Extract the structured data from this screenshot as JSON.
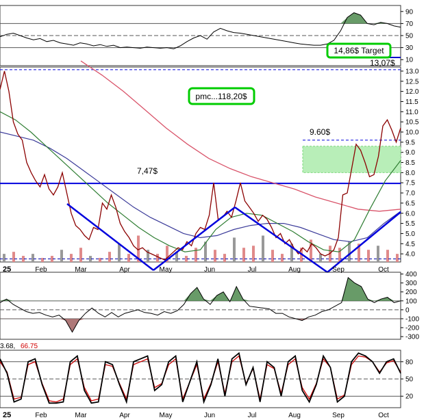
{
  "colors": {
    "price": "#8b0000",
    "ma_green": "#2e7d32",
    "ma_blue": "#3a3a99",
    "ma_red": "#d9546a",
    "trend": "#0000dd",
    "highlight": "#00cc00",
    "zone": "#b8eeb8"
  },
  "chart_data": [
    {
      "type": "line",
      "panel": "rsi",
      "y_ticks": [
        "90",
        "70",
        "50",
        "30",
        "10"
      ],
      "ylim": [
        0,
        100
      ],
      "reference_lines": [
        70,
        50,
        30
      ],
      "series": [
        {
          "values": [
            48,
            52,
            54,
            50,
            46,
            43,
            45,
            40,
            42,
            38,
            36,
            34,
            38,
            36,
            33,
            35,
            32,
            34,
            30,
            31,
            30,
            29,
            31,
            30,
            29,
            30,
            28,
            33,
            40,
            46,
            50,
            44,
            56,
            62,
            58,
            55,
            54,
            52,
            50,
            48,
            46,
            44,
            42,
            40,
            38,
            36,
            35,
            34,
            34,
            36,
            42,
            58,
            80,
            88,
            84,
            70,
            68,
            72,
            70,
            66,
            64
          ]
        }
      ]
    },
    {
      "type": "line",
      "panel": "price",
      "x_tick_labels": [
        "25",
        "Feb",
        "Mar",
        "Apr",
        "May",
        "Jun",
        "Jul",
        "Aug",
        "Sep",
        "Oct"
      ],
      "y_ticks": [
        "13.0",
        "12.5",
        "12.0",
        "11.5",
        "11.0",
        "10.5",
        "10.0",
        "9.5",
        "9.0",
        "8.5",
        "8.0",
        "7.5",
        "7.0",
        "6.5",
        "6.0",
        "5.5",
        "5.0",
        "4.5",
        "4.0"
      ],
      "ylim": [
        3.6,
        13.2
      ],
      "series": [
        {
          "key": "price",
          "values": [
            12.1,
            13.0,
            12.0,
            10.5,
            9.9,
            9.6,
            8.5,
            8.0,
            7.6,
            7.3,
            7.9,
            7.2,
            6.9,
            7.3,
            8.0,
            7.0,
            6.0,
            5.4,
            5.2,
            4.9,
            4.7,
            5.3,
            5.2,
            6.5,
            6.2,
            6.9,
            6.3,
            5.5,
            5.1,
            4.8,
            4.4,
            4.2,
            4.3,
            4.1,
            4.0,
            3.9,
            3.8,
            3.7,
            3.9,
            4.1,
            4.3,
            4.2,
            4.6,
            4.4,
            5.0,
            5.3,
            5.2,
            5.9,
            7.5,
            5.7,
            5.8,
            6.1,
            5.8,
            6.6,
            7.5,
            6.6,
            6.3,
            6.0,
            5.6,
            5.9,
            5.7,
            5.3,
            4.8,
            5.0,
            4.5,
            4.7,
            4.3,
            4.0,
            4.3,
            4.1,
            4.5,
            4.3,
            4.0,
            3.9,
            4.0,
            4.2,
            4.8,
            6.9,
            7.0,
            8.2,
            9.4,
            9.1,
            8.5,
            7.8,
            7.9,
            8.8,
            10.3,
            10.6,
            10.1,
            9.5,
            10.2
          ]
        },
        {
          "key": "ma_green",
          "values": [
            11.0,
            10.6,
            10.0,
            9.3,
            8.6,
            7.9,
            7.2,
            6.5,
            5.9,
            5.3,
            4.8,
            4.4,
            4.1,
            4.2,
            5.2,
            5.8,
            6.0,
            5.9,
            5.5,
            5.1,
            4.6,
            4.2,
            4.1,
            4.7,
            6.2,
            7.6,
            8.6
          ]
        },
        {
          "key": "ma_blue",
          "values": [
            10.0,
            9.8,
            9.6,
            9.2,
            8.7,
            8.1,
            7.5,
            6.9,
            6.3,
            5.8,
            5.4,
            5.0,
            4.8,
            4.9,
            5.2,
            5.4,
            5.5,
            5.5,
            5.3,
            5.0,
            4.7,
            4.6,
            4.8,
            5.5,
            6.1
          ]
        },
        {
          "key": "ma_red",
          "values": [
            13.5,
            12.8,
            12.0,
            11.1,
            10.2,
            9.4,
            8.7,
            8.2,
            7.8,
            7.5,
            7.2,
            6.8,
            6.5,
            6.2,
            6.1,
            6.2
          ]
        },
        {
          "key": "volume",
          "values": [
            4.0,
            4.1,
            3.9,
            4.0,
            3.8,
            3.9,
            4.2,
            4.0,
            4.3,
            3.9,
            3.8,
            4.1,
            4.5,
            4.0,
            4.9,
            4.2,
            4.0,
            4.4,
            4.1,
            3.9,
            4.3,
            4.6,
            4.2,
            4.0,
            4.8,
            4.3,
            4.4,
            4.9,
            4.2,
            4.0,
            4.5,
            4.3,
            4.7,
            4.0,
            4.4,
            4.3,
            4.6,
            4.5,
            4.2,
            4.4,
            4.2,
            4.0
          ]
        }
      ],
      "levels": [
        {
          "value": 13.07,
          "label": "13,07$"
        },
        {
          "value": 9.6,
          "label": "9.60$"
        },
        {
          "value": 7.47,
          "label": "7,47$"
        }
      ],
      "zone": [
        8.0,
        9.3
      ],
      "annotations": {
        "pmc": "pmc...118,20$",
        "target": "14,86$ Target"
      }
    },
    {
      "type": "line",
      "panel": "cci",
      "y_ticks": [
        "400",
        "300",
        "200",
        "100",
        "0",
        "-100",
        "-200",
        "-300"
      ],
      "ylim": [
        -330,
        420
      ],
      "reference_lines": [
        100,
        0,
        -100
      ],
      "series": [
        {
          "values": [
            80,
            120,
            60,
            20,
            -20,
            -40,
            -30,
            -60,
            -80,
            -60,
            -120,
            -250,
            -120,
            -40,
            20,
            -40,
            -80,
            -30,
            -80,
            -40,
            -20,
            0,
            -30,
            -40,
            -60,
            -20,
            -40,
            -10,
            60,
            180,
            250,
            120,
            60,
            160,
            200,
            90,
            260,
            120,
            40,
            30,
            20,
            10,
            -40,
            -40,
            -80,
            -100,
            -120,
            -80,
            -60,
            -20,
            0,
            40,
            80,
            360,
            300,
            260,
            120,
            80,
            120,
            140,
            80,
            100
          ]
        }
      ]
    },
    {
      "type": "line",
      "panel": "stochastic",
      "x_tick_labels": [
        "25",
        "Feb",
        "Mar",
        "Apr",
        "May",
        "Jun",
        "Jul",
        "Aug",
        "Sep",
        "Oct"
      ],
      "title_values": [
        "3.68,",
        "66.75"
      ],
      "y_ticks": [
        "80",
        "50",
        "20"
      ],
      "ylim": [
        0,
        100
      ],
      "reference_lines": [
        80,
        50,
        20
      ],
      "series": [
        {
          "values": [
            85,
            60,
            10,
            15,
            80,
            85,
            40,
            8,
            8,
            10,
            80,
            90,
            30,
            8,
            10,
            80,
            75,
            40,
            10,
            80,
            85,
            90,
            30,
            40,
            80,
            90,
            10,
            45,
            80,
            10,
            40,
            85,
            20,
            85,
            95,
            40,
            70,
            10,
            80,
            70,
            20,
            80,
            90,
            30,
            10,
            40,
            90,
            70,
            10,
            20,
            80,
            95,
            90,
            80,
            60,
            80,
            85,
            60
          ]
        },
        {
          "values": [
            80,
            62,
            15,
            18,
            75,
            80,
            42,
            12,
            10,
            15,
            75,
            85,
            35,
            12,
            15,
            75,
            72,
            42,
            15,
            75,
            80,
            85,
            35,
            42,
            75,
            85,
            15,
            45,
            75,
            15,
            42,
            80,
            25,
            80,
            90,
            42,
            68,
            15,
            75,
            68,
            25,
            75,
            85,
            35,
            15,
            42,
            85,
            70,
            15,
            22,
            75,
            90,
            88,
            80,
            62,
            78,
            82,
            62
          ]
        }
      ]
    }
  ]
}
